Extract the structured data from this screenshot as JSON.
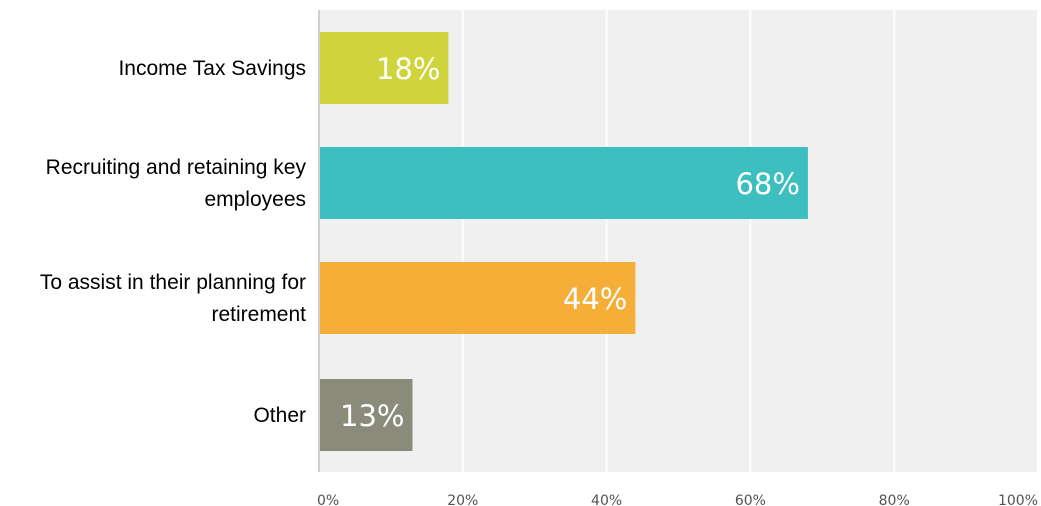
{
  "chart_data": {
    "type": "bar",
    "orientation": "horizontal",
    "title": "",
    "xlabel": "",
    "ylabel": "",
    "categories": [
      "Income Tax Savings",
      "Recruiting and retaining key employees",
      "To assist in their planning for retirement",
      "Other"
    ],
    "category_label_lines": [
      [
        "Income Tax Savings"
      ],
      [
        "Recruiting and retaining key",
        "employees"
      ],
      [
        "To assist in their planning for",
        "retirement"
      ],
      [
        "Other"
      ]
    ],
    "values": [
      18,
      68,
      44,
      13
    ],
    "value_labels": [
      "18%",
      "68%",
      "44%",
      "13%"
    ],
    "colors": [
      "#cfd43d",
      "#3dbfbf",
      "#f5ae38",
      "#8b8b7b"
    ],
    "xlim": [
      0,
      100
    ],
    "xticks": [
      0,
      20,
      40,
      60,
      80,
      100
    ],
    "xtick_labels": [
      "0%",
      "20%",
      "40%",
      "60%",
      "80%",
      "100%"
    ],
    "grid": true,
    "legend": "none",
    "plot_background": "#f0f0f0"
  }
}
